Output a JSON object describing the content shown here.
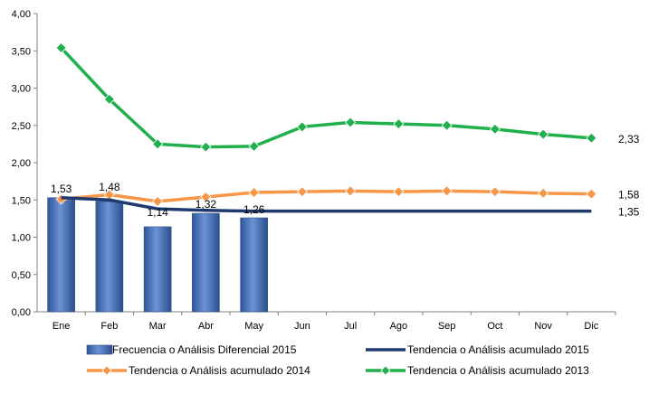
{
  "chart_data": {
    "type": "bar",
    "categories": [
      "Ene",
      "Feb",
      "Mar",
      "Abr",
      "May",
      "Jun",
      "Jul",
      "Ago",
      "Sep",
      "Oct",
      "Nov",
      "Dic"
    ],
    "ylim": [
      0,
      4
    ],
    "y_ticks": [
      "0,00",
      "0,50",
      "1,00",
      "1,50",
      "2,00",
      "2,50",
      "3,00",
      "3,50",
      "4,00"
    ],
    "grid": false,
    "legend_position": "bottom",
    "series": [
      {
        "name": "Frecuencia o Análisis Diferencial 2015",
        "kind": "bar",
        "color": "#4472C4",
        "values": [
          1.53,
          1.48,
          1.14,
          1.32,
          1.26,
          null,
          null,
          null,
          null,
          null,
          null,
          null
        ],
        "labels": [
          "1,53",
          "1,48",
          "1,14",
          "1,32",
          "1,26"
        ]
      },
      {
        "name": "Tendencia o Análisis acumulado 2015",
        "kind": "line",
        "color": "#1F3A6E",
        "values": [
          1.53,
          1.5,
          1.38,
          1.36,
          1.35,
          1.35,
          1.35,
          1.35,
          1.35,
          1.35,
          1.35,
          1.35
        ],
        "end_label": "1,35"
      },
      {
        "name": "Tendencia o Análisis acumulado 2014",
        "kind": "line",
        "marker": "diamond",
        "color": "#F79646",
        "values": [
          1.51,
          1.57,
          1.48,
          1.54,
          1.6,
          1.61,
          1.62,
          1.61,
          1.62,
          1.61,
          1.59,
          1.58
        ],
        "end_label": "1,58"
      },
      {
        "name": "Tendencia o Análisis acumulado 2013",
        "kind": "line",
        "marker": "diamond",
        "color": "#1FB04C",
        "values": [
          3.54,
          2.85,
          2.25,
          2.21,
          2.22,
          2.48,
          2.54,
          2.52,
          2.5,
          2.45,
          2.38,
          2.33
        ],
        "end_label": "2,33"
      }
    ]
  }
}
